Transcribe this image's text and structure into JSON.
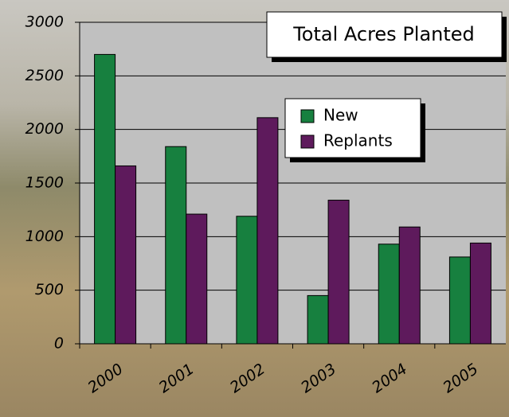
{
  "chart_data": {
    "type": "bar",
    "title": "Total Acres Planted",
    "categories": [
      "2000",
      "2001",
      "2002",
      "2003",
      "2004",
      "2005"
    ],
    "series": [
      {
        "name": "New",
        "color": "#17803f",
        "values": [
          2700,
          1840,
          1190,
          450,
          930,
          810
        ]
      },
      {
        "name": "Replants",
        "color": "#5e1a5c",
        "values": [
          1660,
          1210,
          2110,
          1340,
          1090,
          940
        ]
      }
    ],
    "ylim": [
      0,
      3000
    ],
    "yticks": [
      0,
      500,
      1000,
      1500,
      2000,
      2500,
      3000
    ],
    "grid": true
  }
}
